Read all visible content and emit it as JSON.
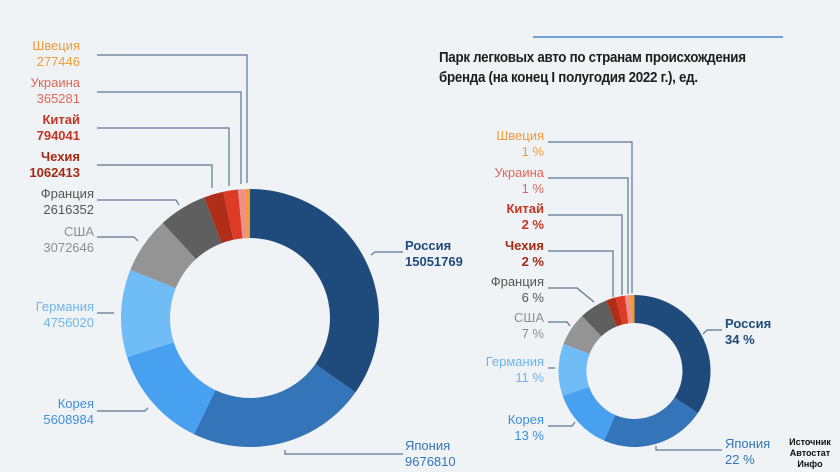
{
  "title": "Парк легковых авто по странам происхождения бренда (на конец I полугодия 2022 г.), ед.",
  "source": [
    "Источник",
    "Автостат",
    "Инфо"
  ],
  "colors": {
    "Россия": "#1f4b7c",
    "Япония": "#3474b8",
    "Корея": "#48a0f0",
    "Германия": "#6fbcf7",
    "США": "#949494",
    "Франция": "#5f5f5f",
    "Чехия": "#b02e17",
    "Китай": "#dd3b26",
    "Украина": "#ee9089",
    "Швеция": "#ef9b3b",
    "leader": "#5a7590",
    "background": "#eff3f5",
    "accent_line": "#6fa3dc"
  },
  "chart_data": [
    {
      "type": "pie",
      "variant": "donut",
      "title": "Парк легковых авто по странам происхождения бренда (на конец I полугодия 2022 г.), ед.",
      "unit": "ед.",
      "categories": [
        "Россия",
        "Япония",
        "Корея",
        "Германия",
        "США",
        "Франция",
        "Чехия",
        "Китай",
        "Украина",
        "Швеция"
      ],
      "values": [
        15051769,
        9676810,
        5608984,
        4756020,
        3072646,
        2616352,
        1062413,
        794041,
        365281,
        277446
      ],
      "labels": [
        "15051769",
        "9676810",
        "5608984",
        "4756020",
        "3072646",
        "2616352",
        "1062413",
        "794041",
        "365281",
        "277446"
      ]
    },
    {
      "type": "pie",
      "variant": "donut",
      "title": "Доля по странам происхождения бренда, %",
      "unit": "%",
      "categories": [
        "Россия",
        "Япония",
        "Корея",
        "Германия",
        "США",
        "Франция",
        "Чехия",
        "Китай",
        "Украина",
        "Швеция"
      ],
      "values": [
        34,
        22,
        13,
        11,
        7,
        6,
        2,
        2,
        1,
        1
      ],
      "labels": [
        "34 %",
        "22 %",
        "13 %",
        "11 %",
        "7 %",
        "6 %",
        "2 %",
        "2 %",
        "1 %",
        "1 %"
      ]
    }
  ],
  "large_labels": [
    {
      "name": "Швеция",
      "value": "277446"
    },
    {
      "name": "Украина",
      "value": "365281"
    },
    {
      "name": "Китай",
      "value": "794041"
    },
    {
      "name": "Чехия",
      "value": "1062413"
    },
    {
      "name": "Франция",
      "value": "2616352"
    },
    {
      "name": "США",
      "value": "3072646"
    },
    {
      "name": "Германия",
      "value": "4756020"
    },
    {
      "name": "Корея",
      "value": "5608984"
    },
    {
      "name": "Россия",
      "value": "15051769"
    },
    {
      "name": "Япония",
      "value": "9676810"
    }
  ],
  "small_labels": [
    {
      "name": "Швеция",
      "value": "1 %"
    },
    {
      "name": "Украина",
      "value": "1 %"
    },
    {
      "name": "Китай",
      "value": "2 %"
    },
    {
      "name": "Чехия",
      "value": "2 %"
    },
    {
      "name": "Франция",
      "value": "6 %"
    },
    {
      "name": "США",
      "value": "7 %"
    },
    {
      "name": "Германия",
      "value": "11 %"
    },
    {
      "name": "Корея",
      "value": "13 %"
    },
    {
      "name": "Россия",
      "value": "34 %"
    },
    {
      "name": "Япония",
      "value": "22 %"
    }
  ]
}
